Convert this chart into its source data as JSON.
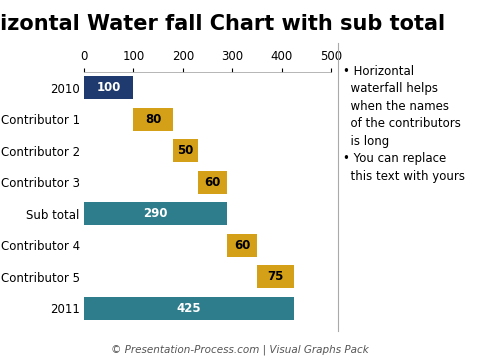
{
  "title": "Horizontal Water fall Chart with sub total",
  "categories": [
    "2010",
    "Contributor 1",
    "Contributor 2",
    "Contributor 3",
    "Sub total",
    "Contributor 4",
    "Contributor 5",
    "2011"
  ],
  "starts": [
    0,
    100,
    180,
    230,
    0,
    290,
    350,
    0
  ],
  "values": [
    100,
    80,
    50,
    60,
    290,
    60,
    75,
    425
  ],
  "colors": [
    "#1e3a6e",
    "#d4a017",
    "#d4a017",
    "#d4a017",
    "#2e7d8c",
    "#d4a017",
    "#d4a017",
    "#2e7d8c"
  ],
  "label_colors": [
    "#ffffff",
    "#000000",
    "#000000",
    "#000000",
    "#ffffff",
    "#000000",
    "#000000",
    "#ffffff"
  ],
  "labels": [
    "100",
    "80",
    "50",
    "60",
    "290",
    "60",
    "75",
    "425"
  ],
  "xlim": [
    0,
    500
  ],
  "xticks": [
    0,
    100,
    200,
    300,
    400,
    500
  ],
  "bar_height": 0.72,
  "bg_color": "#ffffff",
  "annotation_lines": [
    "• Horizontal",
    "  waterfall helps",
    "  when the names",
    "  of the contributors",
    "  is long",
    "• You can replace",
    "  this text with yours"
  ],
  "footer_text": "© Presentation-Process.com | Visual Graphs Pack",
  "title_fontsize": 15,
  "axis_fontsize": 8.5,
  "label_fontsize": 8.5,
  "annotation_fontsize": 8.5,
  "footer_fontsize": 7.5
}
